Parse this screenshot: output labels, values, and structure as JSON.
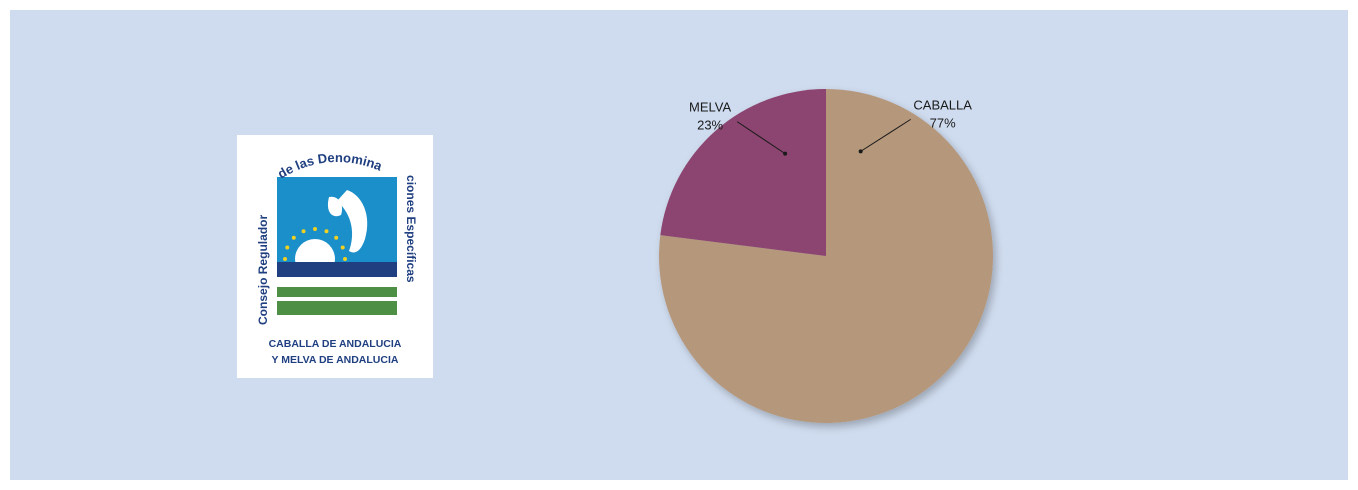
{
  "logo": {
    "arc_text_top": "de las Denomina",
    "arc_text_left": "Consejo Regulador",
    "arc_text_right": "ciones Específicas",
    "line1": "CABALLA DE ANDALUCIA",
    "line2": "Y MELVA DE ANDALUCIA",
    "colors": {
      "sky": "#1b8fc9",
      "sea": "#1f3f80",
      "land": "#4c8f45",
      "text": "#1f3f80",
      "sun": "#f0d020"
    }
  },
  "chart_data": {
    "type": "pie",
    "categories": [
      "CABALLA",
      "MELVA"
    ],
    "values": [
      77,
      23
    ],
    "labels": [
      "77%",
      "23%"
    ],
    "colors": [
      "#b5977c",
      "#8b4470"
    ],
    "start_angle_deg": 0,
    "direction": "clockwise"
  }
}
